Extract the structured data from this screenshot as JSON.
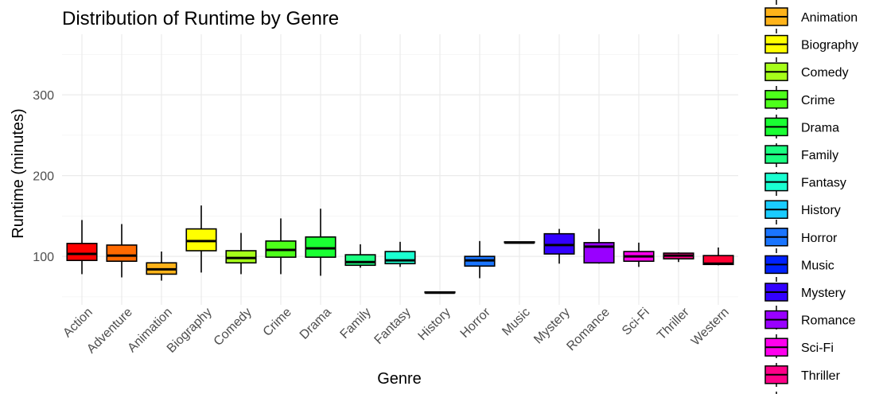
{
  "chart_data": {
    "type": "boxplot",
    "title": "Distribution of Runtime by Genre",
    "xlabel": "Genre",
    "ylabel": "Runtime (minutes)",
    "ylim": [
      40,
      375
    ],
    "yticks": [
      100,
      200,
      300
    ],
    "grid": true,
    "legend_position": "right",
    "categories": [
      "Action",
      "Adventure",
      "Animation",
      "Biography",
      "Comedy",
      "Crime",
      "Drama",
      "Family",
      "Fantasy",
      "History",
      "Horror",
      "Music",
      "Mystery",
      "Romance",
      "Sci-Fi",
      "Thriller",
      "Western"
    ],
    "colors": [
      "#ff0000",
      "#ff6a00",
      "#ffb31a",
      "#ffff00",
      "#a6ff1a",
      "#4dff1a",
      "#1aff33",
      "#1aff80",
      "#1affd1",
      "#1accff",
      "#1a75ff",
      "#0022ff",
      "#3300ff",
      "#9900ff",
      "#ff00ee",
      "#ff0088",
      "#ff0033"
    ],
    "boxes": [
      {
        "min": 78,
        "q1": 95,
        "median": 103,
        "q3": 116,
        "max": 145
      },
      {
        "min": 74,
        "q1": 94,
        "median": 101,
        "q3": 114,
        "max": 140
      },
      {
        "min": 70,
        "q1": 78,
        "median": 84,
        "q3": 92,
        "max": 106
      },
      {
        "min": 80,
        "q1": 107,
        "median": 119,
        "q3": 134,
        "max": 163
      },
      {
        "min": 78,
        "q1": 92,
        "median": 98,
        "q3": 107,
        "max": 129
      },
      {
        "min": 78,
        "q1": 99,
        "median": 108,
        "q3": 119,
        "max": 147
      },
      {
        "min": 76,
        "q1": 99,
        "median": 110,
        "q3": 124,
        "max": 159
      },
      {
        "min": 86,
        "q1": 89,
        "median": 93,
        "q3": 102,
        "max": 115
      },
      {
        "min": 87,
        "q1": 91,
        "median": 95,
        "q3": 106,
        "max": 118
      },
      {
        "min": 55,
        "q1": 55,
        "median": 55,
        "q3": 56,
        "max": 56
      },
      {
        "min": 73,
        "q1": 88,
        "median": 95,
        "q3": 100,
        "max": 119
      },
      {
        "min": 117,
        "q1": 117,
        "median": 117,
        "q3": 118,
        "max": 118
      },
      {
        "min": 91,
        "q1": 103,
        "median": 114,
        "q3": 128,
        "max": 134
      },
      {
        "min": 91,
        "q1": 92,
        "median": 112,
        "q3": 117,
        "max": 134
      },
      {
        "min": 87,
        "q1": 94,
        "median": 100,
        "q3": 106,
        "max": 117
      },
      {
        "min": 93,
        "q1": 97,
        "median": 101,
        "q3": 104,
        "max": 105
      },
      {
        "min": 89,
        "q1": 90,
        "median": 91,
        "q3": 101,
        "max": 111
      }
    ],
    "legend": [
      {
        "label": "Animation",
        "color": "#ffb31a"
      },
      {
        "label": "Biography",
        "color": "#ffff00"
      },
      {
        "label": "Comedy",
        "color": "#a6ff1a"
      },
      {
        "label": "Crime",
        "color": "#4dff1a"
      },
      {
        "label": "Drama",
        "color": "#1aff33"
      },
      {
        "label": "Family",
        "color": "#1aff80"
      },
      {
        "label": "Fantasy",
        "color": "#1affd1"
      },
      {
        "label": "History",
        "color": "#1accff"
      },
      {
        "label": "Horror",
        "color": "#1a75ff"
      },
      {
        "label": "Music",
        "color": "#0022ff"
      },
      {
        "label": "Mystery",
        "color": "#3300ff"
      },
      {
        "label": "Romance",
        "color": "#9900ff"
      },
      {
        "label": "Sci-Fi",
        "color": "#ff00ee"
      },
      {
        "label": "Thriller",
        "color": "#ff0088"
      }
    ]
  }
}
